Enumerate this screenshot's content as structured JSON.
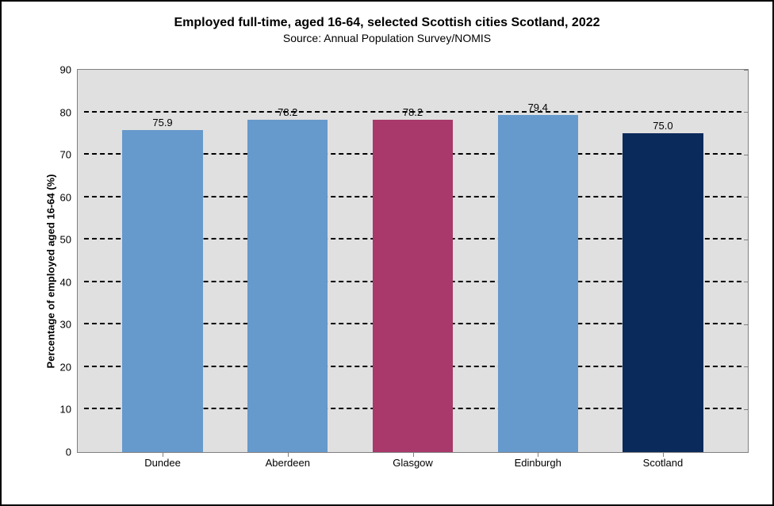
{
  "chart": {
    "type": "bar",
    "title": "Employed full-time, aged 16-64, selected Scottish cities Scotland,  2022",
    "title_fontsize": 16,
    "subtitle": "Source: Annual Population Survey/NOMIS",
    "subtitle_fontsize": 14,
    "ylabel": "Percentage of employed aged 16-64 (%)",
    "ylabel_fontsize": 13,
    "ylim": [
      0,
      90
    ],
    "yticks": [
      0,
      10,
      20,
      30,
      40,
      50,
      60,
      70,
      80,
      90
    ],
    "ytick_fontsize": 13,
    "xtick_fontsize": 13,
    "value_label_fontsize": 13,
    "background_color": "#ffffff",
    "plot_bg_color": "#e0e0e0",
    "grid_color": "#000000",
    "grid_dash": true,
    "border_color": "#000000",
    "axis_color": "#808080",
    "categories": [
      "Dundee",
      "Aberdeen",
      "Glasgow",
      "Edinburgh",
      "Scotland"
    ],
    "values": [
      75.9,
      78.2,
      78.2,
      79.4,
      75.0
    ],
    "value_labels": [
      "75.9",
      "78.2",
      "78.2",
      "79.4",
      "75.0"
    ],
    "bar_colors": [
      "#6699cc",
      "#6699cc",
      "#a8396a",
      "#6699cc",
      "#0b2a5c"
    ],
    "bar_width_pct": 12,
    "bar_gap_pct": 8
  }
}
